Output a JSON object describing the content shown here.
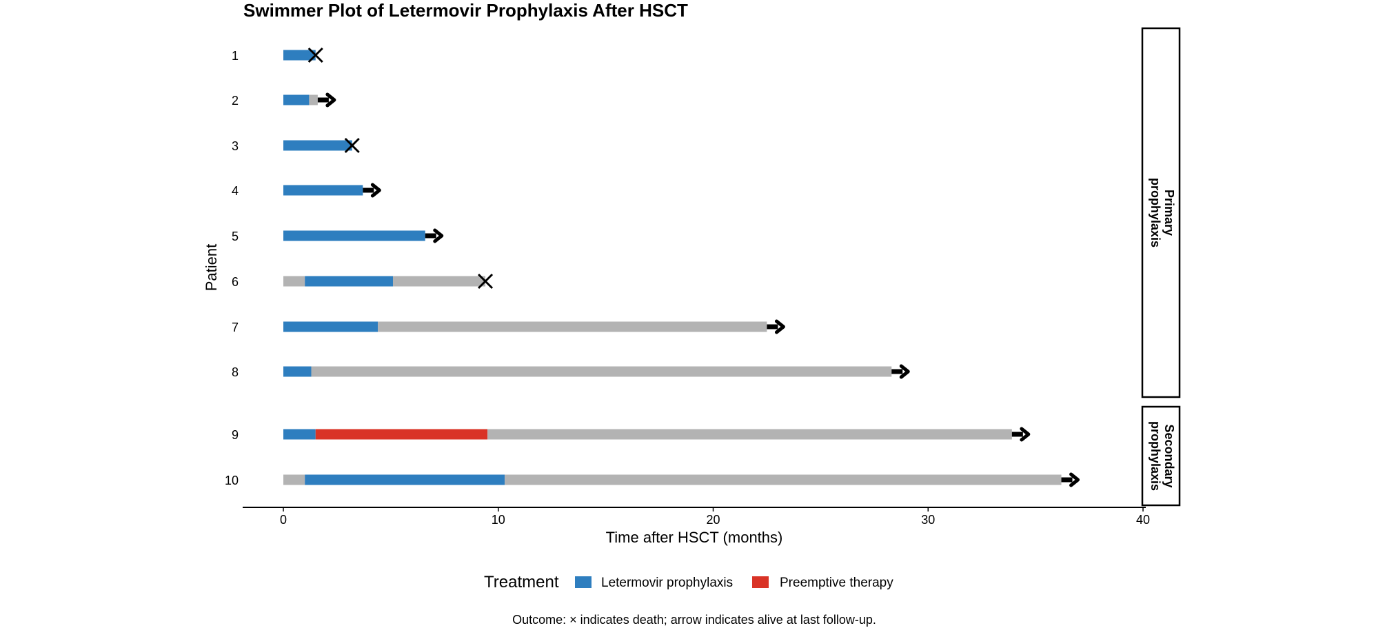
{
  "chart_data": {
    "type": "swimmer",
    "title": "Swimmer Plot of Letermovir Prophylaxis After HSCT",
    "xlabel": "Time after HSCT (months)",
    "ylabel": "Patient",
    "xlim": [
      -1.9,
      40
    ],
    "x_ticks": [
      0,
      10,
      20,
      30,
      40
    ],
    "grid": false,
    "colors": {
      "letermovir": "#2e7ebf",
      "preemptive": "#d93326",
      "off_treatment": "#b3b3b3",
      "marker": "#000000"
    },
    "facets": [
      {
        "label_lines": [
          "Primary",
          "prophylaxis"
        ],
        "patients": [
          "1",
          "2",
          "3",
          "4",
          "5",
          "6",
          "7",
          "8"
        ]
      },
      {
        "label_lines": [
          "Secondary",
          "prophylaxis"
        ],
        "patients": [
          "9",
          "10"
        ]
      }
    ],
    "patients": [
      {
        "id": "1",
        "segments": [
          {
            "start": 0,
            "end": 1.5,
            "type": "letermovir"
          }
        ],
        "end": 1.5,
        "outcome": "death"
      },
      {
        "id": "2",
        "segments": [
          {
            "start": 0,
            "end": 1.2,
            "type": "letermovir"
          },
          {
            "start": 1.2,
            "end": 1.6,
            "type": "off_treatment"
          }
        ],
        "end": 1.6,
        "outcome": "alive"
      },
      {
        "id": "3",
        "segments": [
          {
            "start": 0,
            "end": 3.2,
            "type": "letermovir"
          }
        ],
        "end": 3.2,
        "outcome": "death"
      },
      {
        "id": "4",
        "segments": [
          {
            "start": 0,
            "end": 3.7,
            "type": "letermovir"
          }
        ],
        "end": 3.7,
        "outcome": "alive"
      },
      {
        "id": "5",
        "segments": [
          {
            "start": 0,
            "end": 6.6,
            "type": "letermovir"
          }
        ],
        "end": 6.6,
        "outcome": "alive"
      },
      {
        "id": "6",
        "segments": [
          {
            "start": 0,
            "end": 1.0,
            "type": "off_treatment"
          },
          {
            "start": 1.0,
            "end": 5.1,
            "type": "letermovir"
          },
          {
            "start": 5.1,
            "end": 9.4,
            "type": "off_treatment"
          }
        ],
        "end": 9.4,
        "outcome": "death"
      },
      {
        "id": "7",
        "segments": [
          {
            "start": 0,
            "end": 4.4,
            "type": "letermovir"
          },
          {
            "start": 4.4,
            "end": 22.5,
            "type": "off_treatment"
          }
        ],
        "end": 22.5,
        "outcome": "alive"
      },
      {
        "id": "8",
        "segments": [
          {
            "start": 0,
            "end": 1.3,
            "type": "letermovir"
          },
          {
            "start": 1.3,
            "end": 28.3,
            "type": "off_treatment"
          }
        ],
        "end": 28.3,
        "outcome": "alive"
      },
      {
        "id": "9",
        "segments": [
          {
            "start": 0,
            "end": 1.5,
            "type": "letermovir"
          },
          {
            "start": 1.5,
            "end": 9.5,
            "type": "preemptive"
          },
          {
            "start": 9.5,
            "end": 33.9,
            "type": "off_treatment"
          }
        ],
        "end": 33.9,
        "outcome": "alive"
      },
      {
        "id": "10",
        "segments": [
          {
            "start": 0,
            "end": 1.0,
            "type": "off_treatment"
          },
          {
            "start": 1.0,
            "end": 10.3,
            "type": "letermovir"
          },
          {
            "start": 10.3,
            "end": 36.2,
            "type": "off_treatment"
          }
        ],
        "end": 36.2,
        "outcome": "alive"
      }
    ],
    "legend": {
      "title": "Treatment",
      "placement": "bottom",
      "entries": [
        {
          "key": "letermovir",
          "label": "Letermovir prophylaxis"
        },
        {
          "key": "preemptive",
          "label": "Preemptive therapy"
        }
      ]
    },
    "caption": "Outcome: × indicates death; arrow indicates alive at last follow-up."
  }
}
